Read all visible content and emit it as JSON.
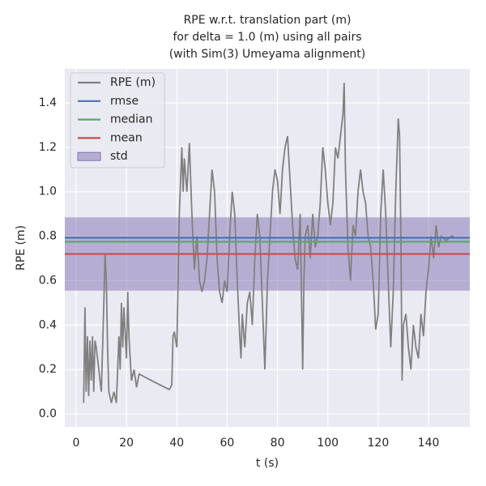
{
  "chart_data": {
    "type": "line",
    "title": [
      "RPE w.r.t. translation part (m)",
      "for delta = 1.0 (m) using all pairs",
      "(with Sim(3) Umeyama alignment)"
    ],
    "x_label": "t (s)",
    "y_label": "RPE (m)",
    "x": [
      3,
      3.5,
      4,
      4.5,
      5,
      5.5,
      6,
      6.5,
      7,
      7.5,
      8,
      9,
      10,
      11,
      11.5,
      12,
      12.5,
      13,
      14,
      15,
      16,
      17,
      17.5,
      18,
      18.5,
      19,
      20,
      20.5,
      21,
      22,
      23,
      24,
      25,
      30,
      37,
      38,
      38.5,
      39,
      40,
      41,
      42,
      42.5,
      43,
      44,
      45,
      46,
      47,
      48,
      49,
      50,
      51,
      52,
      53,
      54,
      55,
      56,
      57,
      58,
      59,
      60,
      61,
      62,
      63,
      64,
      65,
      65.5,
      66,
      67,
      68,
      69,
      70,
      71,
      72,
      73,
      74,
      75,
      75.5,
      76,
      77,
      78,
      79,
      80,
      81,
      82,
      83,
      84,
      85,
      86,
      87,
      88,
      89,
      90,
      90.5,
      91,
      92,
      93,
      94,
      95,
      96,
      97,
      98,
      99,
      100,
      101,
      102,
      103,
      104,
      105,
      106,
      106.5,
      107,
      108,
      109,
      110,
      111,
      112,
      113,
      114,
      115,
      116,
      117,
      118,
      119,
      120,
      121,
      122,
      123,
      124,
      125,
      126,
      127,
      128,
      128.5,
      129,
      129.5,
      130,
      131,
      132,
      133,
      134,
      135,
      136,
      137,
      138,
      139,
      140,
      141,
      142,
      143,
      144,
      145,
      147,
      149,
      150
    ],
    "series": [
      {
        "name": "RPE (m)",
        "color": "#808080",
        "values": [
          0.05,
          0.48,
          0.1,
          0.35,
          0.08,
          0.33,
          0.15,
          0.35,
          0.1,
          0.33,
          0.3,
          0.2,
          0.1,
          0.5,
          0.72,
          0.6,
          0.3,
          0.1,
          0.05,
          0.1,
          0.05,
          0.35,
          0.2,
          0.5,
          0.3,
          0.48,
          0.25,
          0.55,
          0.35,
          0.15,
          0.2,
          0.12,
          0.18,
          0.15,
          0.11,
          0.13,
          0.35,
          0.37,
          0.3,
          0.9,
          1.2,
          1.0,
          1.15,
          1.0,
          1.22,
          0.9,
          0.65,
          0.8,
          0.6,
          0.55,
          0.6,
          0.7,
          0.9,
          1.1,
          1.0,
          0.7,
          0.55,
          0.5,
          0.6,
          0.55,
          0.8,
          1.0,
          0.9,
          0.6,
          0.35,
          0.25,
          0.45,
          0.3,
          0.5,
          0.55,
          0.4,
          0.7,
          0.9,
          0.8,
          0.5,
          0.2,
          0.4,
          0.6,
          0.8,
          1.0,
          1.1,
          1.05,
          0.9,
          1.1,
          1.2,
          1.25,
          1.05,
          0.85,
          0.7,
          0.65,
          0.9,
          0.2,
          0.6,
          0.8,
          0.85,
          0.7,
          0.9,
          0.75,
          0.8,
          0.95,
          1.2,
          1.1,
          0.95,
          0.85,
          0.95,
          1.2,
          1.15,
          1.25,
          1.35,
          1.49,
          1.1,
          0.75,
          0.6,
          0.85,
          0.8,
          1.0,
          1.1,
          1.0,
          0.95,
          0.8,
          0.75,
          0.6,
          0.38,
          0.45,
          0.9,
          1.1,
          0.9,
          0.6,
          0.3,
          0.55,
          1.0,
          1.33,
          1.25,
          0.8,
          0.15,
          0.4,
          0.45,
          0.3,
          0.2,
          0.4,
          0.3,
          0.25,
          0.45,
          0.35,
          0.55,
          0.65,
          0.8,
          0.7,
          0.85,
          0.75,
          0.8,
          0.78,
          0.8,
          0.8
        ]
      }
    ],
    "reference_lines": [
      {
        "name": "rmse",
        "color": "#4c72b0",
        "value": 0.793
      },
      {
        "name": "median",
        "color": "#55a868",
        "value": 0.775
      },
      {
        "name": "mean",
        "color": "#c44e52",
        "value": 0.72
      }
    ],
    "band": {
      "name": "std",
      "color": "#8172b2",
      "value": 0.165
    },
    "xlim": [
      -4.5,
      156.4
    ],
    "xticks": [
      0,
      20,
      40,
      60,
      80,
      100,
      120,
      140
    ],
    "ylim": [
      -0.058,
      1.553
    ],
    "yticks": [
      {
        "value": 0,
        "label": "0.0"
      },
      {
        "value": 0.2,
        "label": "0.2"
      },
      {
        "value": 0.4,
        "label": "0.4"
      },
      {
        "value": 0.6,
        "label": "0.6"
      },
      {
        "value": 0.8,
        "label": "0.8"
      },
      {
        "value": 1.0,
        "label": "1.0"
      },
      {
        "value": 1.2,
        "label": "1.2"
      },
      {
        "value": 1.4,
        "label": "1.4"
      }
    ],
    "grid": true,
    "legend": "upper left"
  }
}
